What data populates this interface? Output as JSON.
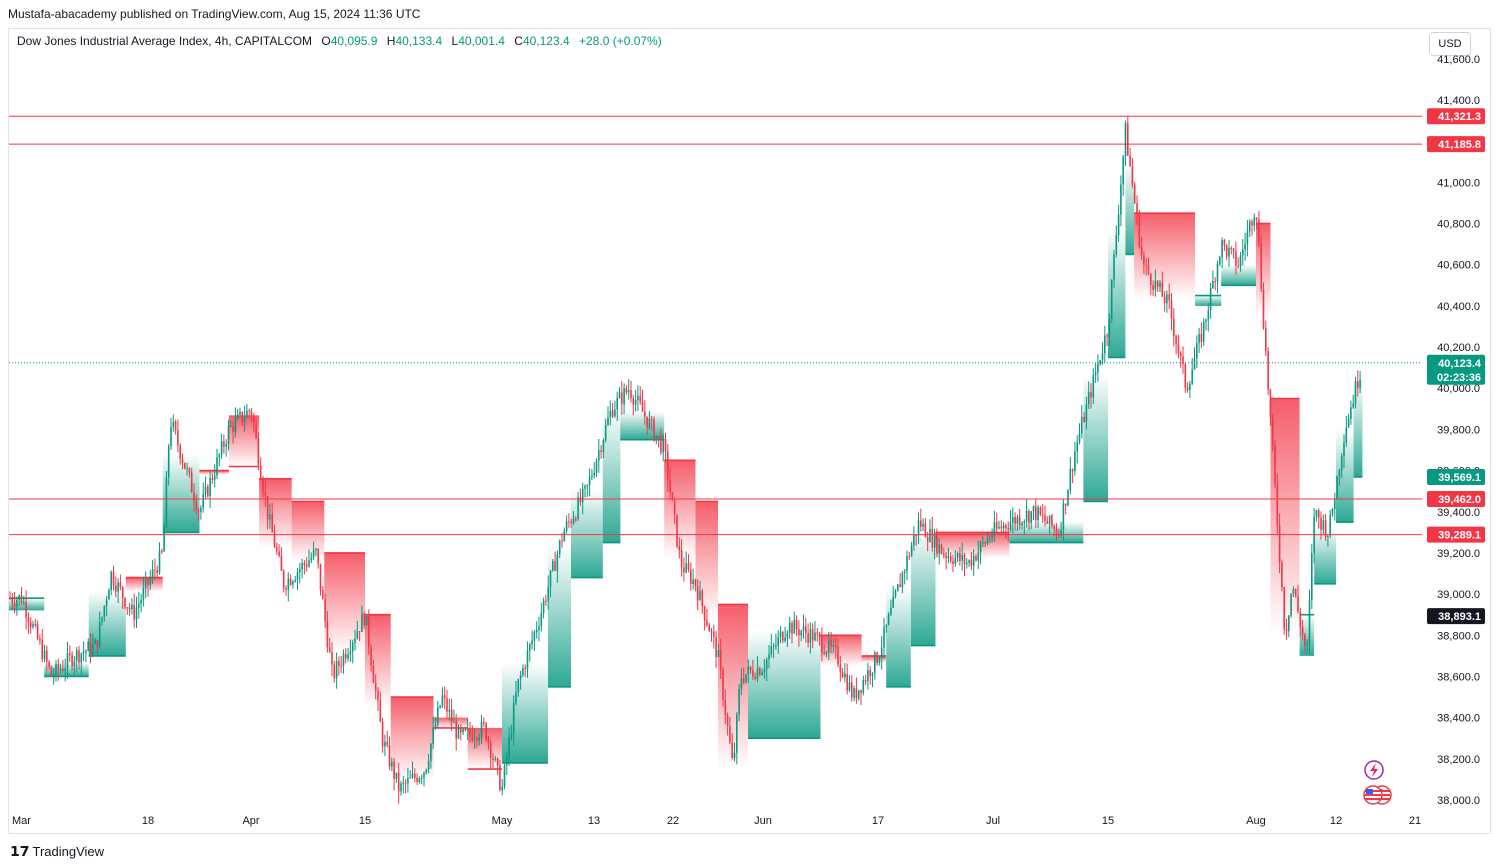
{
  "header": {
    "publisher": "Mustafa-abacademy published on TradingView.com, Aug 15, 2024 11:36 UTC",
    "symbol": "Dow Jones Industrial Average Index, 4h, CAPITALCOM",
    "ohlc": [
      {
        "label": "O",
        "value": "40,095.9"
      },
      {
        "label": "H",
        "value": "40,133.4"
      },
      {
        "label": "L",
        "value": "40,001.4"
      },
      {
        "label": "C",
        "value": "40,123.4"
      }
    ],
    "change": "+28.0 (+0.07%)"
  },
  "currency_button": "USD",
  "footer": {
    "brand": "TradingView",
    "logo": "tradingview-logo"
  },
  "colors": {
    "up": "#089981",
    "down": "#f23645",
    "level_line": "#f23645",
    "current_badge": "#089981",
    "black_badge": "#131722"
  },
  "chart_data": {
    "type": "candlestick",
    "title": "Dow Jones Industrial Average Index, 4h, CAPITALCOM",
    "ylim": [
      37950,
      41650
    ],
    "y_ticks": [
      "38,000.0",
      "38,200.0",
      "38,400.0",
      "38,600.0",
      "38,800.0",
      "39,000.0",
      "39,200.0",
      "39,400.0",
      "39,600.0",
      "39,800.0",
      "40,000.0",
      "40,200.0",
      "40,400.0",
      "40,600.0",
      "40,800.0",
      "41,000.0",
      "41,200.0",
      "41,400.0",
      "41,600.0"
    ],
    "y_tick_values": [
      38000,
      38200,
      38400,
      38600,
      38800,
      39000,
      39200,
      39400,
      39600,
      39800,
      40000,
      40200,
      40400,
      40600,
      40800,
      41000,
      41200,
      41400,
      41600
    ],
    "x_ticks": [
      {
        "label": "Mar",
        "date": "2024-03-01"
      },
      {
        "label": "18",
        "date": "2024-03-18"
      },
      {
        "label": "Apr",
        "date": "2024-04-01"
      },
      {
        "label": "15",
        "date": "2024-04-15"
      },
      {
        "label": "May",
        "date": "2024-05-01"
      },
      {
        "label": "13",
        "date": "2024-05-13"
      },
      {
        "label": "22",
        "date": "2024-05-22"
      },
      {
        "label": "Jun",
        "date": "2024-06-03"
      },
      {
        "label": "17",
        "date": "2024-06-17"
      },
      {
        "label": "Jul",
        "date": "2024-07-01"
      },
      {
        "label": "15",
        "date": "2024-07-15"
      },
      {
        "label": "Aug",
        "date": "2024-08-01"
      },
      {
        "label": "12",
        "date": "2024-08-12"
      },
      {
        "label": "21",
        "date": "2024-08-21"
      }
    ],
    "levels": [
      {
        "value": 41321.3,
        "label": "41,321.3",
        "color": "#f23645"
      },
      {
        "value": 41185.8,
        "label": "41,185.8",
        "color": "#f23645"
      },
      {
        "value": 39462.0,
        "label": "39,462.0",
        "color": "#f23645"
      },
      {
        "value": 39289.1,
        "label": "39,289.1",
        "color": "#f23645"
      }
    ],
    "last_price": {
      "value": 40123.4,
      "label": "40,123.4",
      "countdown": "02:23:36"
    },
    "badges": [
      {
        "value": 39569.1,
        "label": "39,569.1",
        "color": "#089981"
      },
      {
        "value": 38893.1,
        "label": "38,893.1",
        "color": "#131722"
      }
    ],
    "price_path": [
      {
        "date": "2024-03-01",
        "price": 38980
      },
      {
        "date": "2024-03-05",
        "price": 38600
      },
      {
        "date": "2024-03-08",
        "price": 38700
      },
      {
        "date": "2024-03-11",
        "price": 38750
      },
      {
        "date": "2024-03-13",
        "price": 39100
      },
      {
        "date": "2024-03-16",
        "price": 38900
      },
      {
        "date": "2024-03-20",
        "price": 39200
      },
      {
        "date": "2024-03-21",
        "price": 39850
      },
      {
        "date": "2024-03-25",
        "price": 39400
      },
      {
        "date": "2024-03-29",
        "price": 39800
      },
      {
        "date": "2024-04-01",
        "price": 39900
      },
      {
        "date": "2024-04-03",
        "price": 39400
      },
      {
        "date": "2024-04-05",
        "price": 39050
      },
      {
        "date": "2024-04-09",
        "price": 39200
      },
      {
        "date": "2024-04-11",
        "price": 38600
      },
      {
        "date": "2024-04-15",
        "price": 38900
      },
      {
        "date": "2024-04-17",
        "price": 38300
      },
      {
        "date": "2024-04-19",
        "price": 38050
      },
      {
        "date": "2024-04-22",
        "price": 38150
      },
      {
        "date": "2024-04-24",
        "price": 38500
      },
      {
        "date": "2024-04-26",
        "price": 38300
      },
      {
        "date": "2024-04-29",
        "price": 38350
      },
      {
        "date": "2024-05-01",
        "price": 38050
      },
      {
        "date": "2024-05-03",
        "price": 38550
      },
      {
        "date": "2024-05-06",
        "price": 38900
      },
      {
        "date": "2024-05-09",
        "price": 39300
      },
      {
        "date": "2024-05-12",
        "price": 39500
      },
      {
        "date": "2024-05-15",
        "price": 39900
      },
      {
        "date": "2024-05-17",
        "price": 40000
      },
      {
        "date": "2024-05-19",
        "price": 39850
      },
      {
        "date": "2024-05-21",
        "price": 39700
      },
      {
        "date": "2024-05-23",
        "price": 39150
      },
      {
        "date": "2024-05-25",
        "price": 39050
      },
      {
        "date": "2024-05-28",
        "price": 38700
      },
      {
        "date": "2024-05-30",
        "price": 38150
      },
      {
        "date": "2024-05-31",
        "price": 38600
      },
      {
        "date": "2024-06-03",
        "price": 38650
      },
      {
        "date": "2024-06-06",
        "price": 38850
      },
      {
        "date": "2024-06-09",
        "price": 38800
      },
      {
        "date": "2024-06-12",
        "price": 38700
      },
      {
        "date": "2024-06-14",
        "price": 38500
      },
      {
        "date": "2024-06-17",
        "price": 38700
      },
      {
        "date": "2024-06-20",
        "price": 39100
      },
      {
        "date": "2024-06-22",
        "price": 39350
      },
      {
        "date": "2024-06-25",
        "price": 39200
      },
      {
        "date": "2024-06-28",
        "price": 39150
      },
      {
        "date": "2024-07-01",
        "price": 39300
      },
      {
        "date": "2024-07-03",
        "price": 39350
      },
      {
        "date": "2024-07-06",
        "price": 39400
      },
      {
        "date": "2024-07-09",
        "price": 39300
      },
      {
        "date": "2024-07-11",
        "price": 39700
      },
      {
        "date": "2024-07-13",
        "price": 40000
      },
      {
        "date": "2024-07-15",
        "price": 40300
      },
      {
        "date": "2024-07-17",
        "price": 41250
      },
      {
        "date": "2024-07-19",
        "price": 40600
      },
      {
        "date": "2024-07-22",
        "price": 40400
      },
      {
        "date": "2024-07-24",
        "price": 40000
      },
      {
        "date": "2024-07-26",
        "price": 40300
      },
      {
        "date": "2024-07-28",
        "price": 40700
      },
      {
        "date": "2024-07-30",
        "price": 40600
      },
      {
        "date": "2024-08-01",
        "price": 40900
      },
      {
        "date": "2024-08-02",
        "price": 40350
      },
      {
        "date": "2024-08-05",
        "price": 38800
      },
      {
        "date": "2024-08-06",
        "price": 39050
      },
      {
        "date": "2024-08-08",
        "price": 38700
      },
      {
        "date": "2024-08-09",
        "price": 39400
      },
      {
        "date": "2024-08-11",
        "price": 39300
      },
      {
        "date": "2024-08-13",
        "price": 39800
      },
      {
        "date": "2024-08-15",
        "price": 40123.4
      }
    ],
    "stop_band": [
      {
        "from": "2024-02-29",
        "to": "2024-03-04",
        "level": 38980,
        "trend": "up"
      },
      {
        "from": "2024-03-04",
        "to": "2024-03-10",
        "level": 38600,
        "trend": "up"
      },
      {
        "from": "2024-03-10",
        "to": "2024-03-15",
        "level": 38700,
        "trend": "up"
      },
      {
        "from": "2024-03-15",
        "to": "2024-03-20",
        "level": 39080,
        "trend": "down"
      },
      {
        "from": "2024-03-20",
        "to": "2024-03-25",
        "level": 39300,
        "trend": "up"
      },
      {
        "from": "2024-03-25",
        "to": "2024-03-29",
        "level": 39600,
        "trend": "down"
      },
      {
        "from": "2024-03-29",
        "to": "2024-04-02",
        "level": 39620,
        "trend": "down"
      },
      {
        "from": "2024-04-02",
        "to": "2024-04-06",
        "level": 39560,
        "trend": "down"
      },
      {
        "from": "2024-04-06",
        "to": "2024-04-10",
        "level": 39450,
        "trend": "down"
      },
      {
        "from": "2024-04-10",
        "to": "2024-04-15",
        "level": 39200,
        "trend": "down"
      },
      {
        "from": "2024-04-15",
        "to": "2024-04-18",
        "level": 38900,
        "trend": "down"
      },
      {
        "from": "2024-04-18",
        "to": "2024-04-23",
        "level": 38500,
        "trend": "down"
      },
      {
        "from": "2024-04-23",
        "to": "2024-04-27",
        "level": 38350,
        "trend": "down"
      },
      {
        "from": "2024-04-27",
        "to": "2024-05-01",
        "level": 38150,
        "trend": "down"
      },
      {
        "from": "2024-05-01",
        "to": "2024-05-07",
        "level": 38180,
        "trend": "up"
      },
      {
        "from": "2024-05-07",
        "to": "2024-05-10",
        "level": 38550,
        "trend": "up"
      },
      {
        "from": "2024-05-10",
        "to": "2024-05-14",
        "level": 39080,
        "trend": "up"
      },
      {
        "from": "2024-05-14",
        "to": "2024-05-16",
        "level": 39250,
        "trend": "up"
      },
      {
        "from": "2024-05-16",
        "to": "2024-05-21",
        "level": 39750,
        "trend": "up"
      },
      {
        "from": "2024-05-21",
        "to": "2024-05-25",
        "level": 39650,
        "trend": "down"
      },
      {
        "from": "2024-05-25",
        "to": "2024-05-28",
        "level": 39450,
        "trend": "down"
      },
      {
        "from": "2024-05-28",
        "to": "2024-06-01",
        "level": 38950,
        "trend": "down"
      },
      {
        "from": "2024-06-01",
        "to": "2024-06-10",
        "level": 38300,
        "trend": "up"
      },
      {
        "from": "2024-06-10",
        "to": "2024-06-15",
        "level": 38800,
        "trend": "down"
      },
      {
        "from": "2024-06-15",
        "to": "2024-06-18",
        "level": 38700,
        "trend": "down"
      },
      {
        "from": "2024-06-18",
        "to": "2024-06-21",
        "level": 38550,
        "trend": "up"
      },
      {
        "from": "2024-06-21",
        "to": "2024-06-24",
        "level": 38750,
        "trend": "up"
      },
      {
        "from": "2024-06-24",
        "to": "2024-07-03",
        "level": 39300,
        "trend": "down"
      },
      {
        "from": "2024-07-03",
        "to": "2024-07-12",
        "level": 39250,
        "trend": "up"
      },
      {
        "from": "2024-07-12",
        "to": "2024-07-15",
        "level": 39450,
        "trend": "up"
      },
      {
        "from": "2024-07-15",
        "to": "2024-07-17",
        "level": 40150,
        "trend": "up"
      },
      {
        "from": "2024-07-17",
        "to": "2024-07-18",
        "level": 40650,
        "trend": "up"
      },
      {
        "from": "2024-07-18",
        "to": "2024-07-25",
        "level": 40850,
        "trend": "down"
      },
      {
        "from": "2024-07-25",
        "to": "2024-07-28",
        "level": 40450,
        "trend": "up"
      },
      {
        "from": "2024-07-28",
        "to": "2024-08-01",
        "level": 40500,
        "trend": "up"
      },
      {
        "from": "2024-08-01",
        "to": "2024-08-03",
        "level": 40800,
        "trend": "down"
      },
      {
        "from": "2024-08-03",
        "to": "2024-08-07",
        "level": 39950,
        "trend": "down"
      },
      {
        "from": "2024-08-07",
        "to": "2024-08-09",
        "level": 38900,
        "trend": "up"
      },
      {
        "from": "2024-08-09",
        "to": "2024-08-12",
        "level": 39050,
        "trend": "up"
      },
      {
        "from": "2024-08-12",
        "to": "2024-08-14",
        "level": 39350,
        "trend": "up"
      },
      {
        "from": "2024-08-14",
        "to": "2024-08-15",
        "level": 39569.1,
        "trend": "up"
      }
    ]
  }
}
